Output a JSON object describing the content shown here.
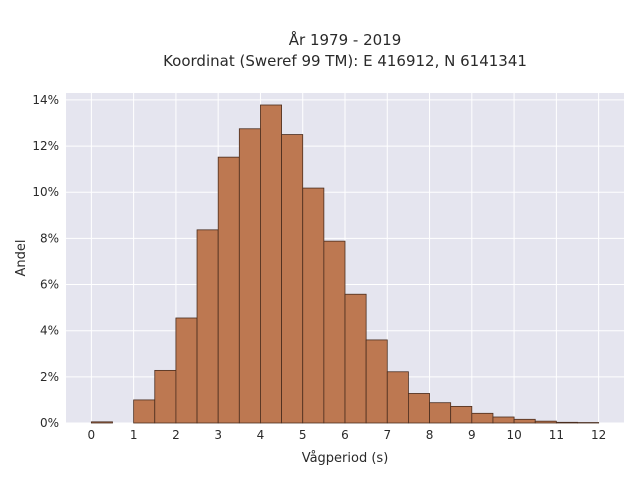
{
  "chart_data": {
    "type": "bar",
    "title_line1": "År 1979 - 2019",
    "title_line2": "Koordinat (Sweref 99 TM): E 416912, N 6141341",
    "xlabel": "Vågperiod (s)",
    "ylabel": "Andel",
    "xlim": [
      -0.6,
      12.6
    ],
    "ylim": [
      0,
      14.3
    ],
    "bin_width": 0.5,
    "x_ticks": [
      0,
      1,
      2,
      3,
      4,
      5,
      6,
      7,
      8,
      9,
      10,
      11,
      12
    ],
    "x_tick_labels": [
      "0",
      "1",
      "2",
      "3",
      "4",
      "5",
      "6",
      "7",
      "8",
      "9",
      "10",
      "11",
      "12"
    ],
    "y_ticks": [
      0,
      2,
      4,
      6,
      8,
      10,
      12,
      14
    ],
    "y_tick_labels": [
      "0%",
      "2%",
      "4%",
      "6%",
      "8%",
      "10%",
      "12%",
      "14%"
    ],
    "bins": [
      {
        "x0": 0.0,
        "value": 0.05
      },
      {
        "x0": 1.0,
        "value": 1.0
      },
      {
        "x0": 1.5,
        "value": 2.28
      },
      {
        "x0": 2.0,
        "value": 4.55
      },
      {
        "x0": 2.5,
        "value": 8.37
      },
      {
        "x0": 3.0,
        "value": 11.52
      },
      {
        "x0": 3.5,
        "value": 12.75
      },
      {
        "x0": 4.0,
        "value": 13.78
      },
      {
        "x0": 4.5,
        "value": 12.5
      },
      {
        "x0": 5.0,
        "value": 10.18
      },
      {
        "x0": 5.5,
        "value": 7.88
      },
      {
        "x0": 6.0,
        "value": 5.58
      },
      {
        "x0": 6.5,
        "value": 3.6
      },
      {
        "x0": 7.0,
        "value": 2.22
      },
      {
        "x0": 7.5,
        "value": 1.28
      },
      {
        "x0": 8.0,
        "value": 0.88
      },
      {
        "x0": 8.5,
        "value": 0.72
      },
      {
        "x0": 9.0,
        "value": 0.42
      },
      {
        "x0": 9.5,
        "value": 0.26
      },
      {
        "x0": 10.0,
        "value": 0.16
      },
      {
        "x0": 10.5,
        "value": 0.08
      },
      {
        "x0": 11.0,
        "value": 0.03
      },
      {
        "x0": 11.5,
        "value": 0.02
      }
    ],
    "grid": true,
    "colors": {
      "bar_fill": "#bd7851",
      "bar_edge": "#4a2d1e",
      "plot_bg": "#e5e5ef",
      "grid": "#ffffff",
      "text": "#2a2a2a"
    }
  }
}
